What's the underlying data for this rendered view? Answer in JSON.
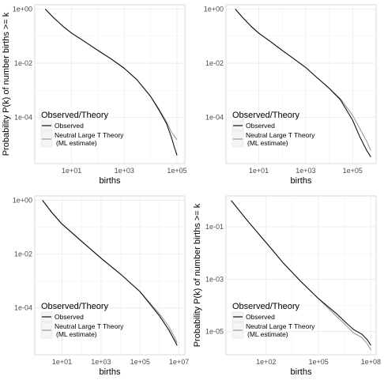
{
  "figure": {
    "layout": "2x2 grid of log-log complementary cumulative distribution plots",
    "colors": {
      "observed": "#111111",
      "theory": "#9a9a9a",
      "grid": "#ececec",
      "axis_text": "#4d4d4d"
    }
  },
  "chart_data": [
    {
      "type": "line",
      "panel": "top-left",
      "xlabel": "births",
      "ylabel": "Probability P(k) of number births >= k",
      "x_scale": "log10",
      "y_scale": "log10",
      "xlim": [
        0.4,
        200000
      ],
      "ylim": [
        2e-06,
        1.45
      ],
      "x_ticks": [
        {
          "value": 10,
          "label": "1e+01"
        },
        {
          "value": 1000,
          "label": "1e+03"
        },
        {
          "value": 100000,
          "label": "1e+05"
        }
      ],
      "y_ticks": [
        {
          "value": 1,
          "label": "1e+00"
        },
        {
          "value": 0.01,
          "label": "1e-02"
        },
        {
          "value": 0.0001,
          "label": "1e-04"
        }
      ],
      "grid": true,
      "legend": {
        "title": "Observed/Theory",
        "placement": "bottom-left",
        "entries": [
          "Observed",
          "Neutral Large T Theory",
          "(ML estimate)"
        ]
      },
      "series": [
        {
          "name": "Observed",
          "x": [
            1,
            2,
            5,
            10,
            30,
            100,
            300,
            1000,
            3000,
            10000,
            20000,
            40000,
            60000,
            80000,
            100000
          ],
          "y": [
            1,
            0.5,
            0.22,
            0.13,
            0.065,
            0.03,
            0.015,
            0.0065,
            0.0025,
            0.0006,
            0.0002,
            6e-05,
            2e-05,
            8e-06,
            4e-06
          ]
        },
        {
          "name": "Neutral Large T Theory (ML estimate)",
          "x": [
            1,
            2,
            5,
            10,
            30,
            100,
            300,
            1000,
            3000,
            10000,
            20000,
            40000,
            60000,
            100000
          ],
          "y": [
            1,
            0.5,
            0.22,
            0.13,
            0.065,
            0.03,
            0.015,
            0.0065,
            0.0025,
            0.0006,
            0.00022,
            7e-05,
            3e-05,
            1.5e-05
          ]
        }
      ]
    },
    {
      "type": "line",
      "panel": "top-right",
      "xlabel": "births",
      "ylabel": "",
      "x_scale": "log10",
      "y_scale": "log10",
      "xlim": [
        0.4,
        1000000
      ],
      "ylim": [
        2e-06,
        1.45
      ],
      "x_ticks": [
        {
          "value": 10,
          "label": "1e+01"
        },
        {
          "value": 1000,
          "label": "1e+03"
        },
        {
          "value": 100000,
          "label": "1e+05"
        }
      ],
      "y_ticks": [
        {
          "value": 1,
          "label": "1e+00"
        },
        {
          "value": 0.01,
          "label": "1e-02"
        },
        {
          "value": 0.0001,
          "label": "1e-04"
        }
      ],
      "grid": true,
      "legend": {
        "title": "Observed/Theory",
        "placement": "bottom-left",
        "entries": [
          "Observed",
          "Neutral Large T Theory",
          "(ML estimate)"
        ]
      },
      "series": [
        {
          "name": "Observed",
          "x": [
            1,
            2,
            5,
            10,
            30,
            100,
            300,
            1000,
            3000,
            10000,
            30000,
            100000,
            200000,
            400000,
            600000
          ],
          "y": [
            1,
            0.5,
            0.22,
            0.13,
            0.065,
            0.03,
            0.015,
            0.007,
            0.003,
            0.0012,
            0.00045,
            8e-05,
            2e-05,
            6e-06,
            3.5e-06
          ]
        },
        {
          "name": "Neutral Large T Theory (ML estimate)",
          "x": [
            1,
            2,
            5,
            10,
            30,
            100,
            300,
            1000,
            3000,
            10000,
            30000,
            100000,
            200000,
            400000,
            600000
          ],
          "y": [
            1,
            0.5,
            0.22,
            0.13,
            0.065,
            0.03,
            0.015,
            0.007,
            0.003,
            0.0012,
            0.0005,
            0.00012,
            4e-05,
            1.3e-05,
            6e-06
          ]
        }
      ]
    },
    {
      "type": "line",
      "panel": "bottom-left",
      "xlabel": "births",
      "ylabel": "",
      "x_scale": "log10",
      "y_scale": "log10",
      "xlim": [
        0.4,
        20000000
      ],
      "ylim": [
        1.8e-06,
        1.45
      ],
      "x_ticks": [
        {
          "value": 10,
          "label": "1e+01"
        },
        {
          "value": 1000,
          "label": "1e+03"
        },
        {
          "value": 100000,
          "label": "1e+05"
        },
        {
          "value": 10000000,
          "label": "1e+07"
        }
      ],
      "y_ticks": [
        {
          "value": 1,
          "label": "1e+00"
        },
        {
          "value": 0.01,
          "label": "1e-02"
        },
        {
          "value": 0.0001,
          "label": "1e-04"
        }
      ],
      "grid": true,
      "legend": {
        "title": "Observed/Theory",
        "placement": "bottom-left",
        "entries": [
          "Observed",
          "Neutral Large T Theory",
          "(ML estimate)"
        ]
      },
      "series": [
        {
          "name": "Observed",
          "x": [
            1,
            3,
            10,
            100,
            1000,
            10000,
            100000,
            1000000,
            3000000,
            6000000,
            8000000
          ],
          "y": [
            1,
            0.35,
            0.13,
            0.03,
            0.007,
            0.0018,
            0.0004,
            5e-05,
            1.5e-05,
            6e-06,
            4e-06
          ]
        },
        {
          "name": "Neutral Large T Theory (ML estimate)",
          "x": [
            1,
            3,
            10,
            100,
            1000,
            10000,
            100000,
            1000000,
            3000000,
            6000000,
            8000000
          ],
          "y": [
            1,
            0.35,
            0.13,
            0.03,
            0.007,
            0.0018,
            0.0004,
            6e-05,
            2e-05,
            8e-06,
            5e-06
          ]
        }
      ]
    },
    {
      "type": "line",
      "panel": "bottom-right",
      "xlabel": "births",
      "ylabel": "Probability P(k) of number births >= k",
      "x_scale": "log10",
      "y_scale": "log10",
      "xlim": [
        0.5,
        200000000
      ],
      "ylim": [
        1.3e-06,
        1.5
      ],
      "x_ticks": [
        {
          "value": 100,
          "label": "1e+02"
        },
        {
          "value": 100000,
          "label": "1e+05"
        },
        {
          "value": 100000000,
          "label": "1e+08"
        }
      ],
      "y_ticks": [
        {
          "value": 0.1,
          "label": "1e-01"
        },
        {
          "value": 0.001,
          "label": "1e-03"
        },
        {
          "value": 1e-05,
          "label": "1e-05"
        }
      ],
      "grid": true,
      "legend": {
        "title": "Observed/Theory",
        "placement": "bottom-left",
        "entries": [
          "Observed",
          "Neutral Large T Theory",
          "(ML estimate)"
        ]
      },
      "series": [
        {
          "name": "Observed",
          "x": [
            1,
            10,
            100,
            1000,
            10000,
            100000,
            1000000,
            3000000,
            10000000,
            30000000,
            60000000,
            100000000
          ],
          "y": [
            1,
            0.15,
            0.025,
            0.004,
            0.0008,
            0.00018,
            5e-05,
            2.5e-05,
            1.2e-05,
            8e-06,
            5e-06,
            3e-06
          ]
        },
        {
          "name": "Neutral Large T Theory (ML estimate)",
          "x": [
            1,
            10,
            100,
            1000,
            10000,
            100000,
            1000000,
            3000000,
            10000000,
            30000000,
            60000000,
            100000000
          ],
          "y": [
            1,
            0.15,
            0.025,
            0.004,
            0.0008,
            0.00018,
            4e-05,
            2e-05,
            9e-06,
            6e-06,
            3.5e-06,
            2e-06
          ]
        }
      ]
    }
  ]
}
